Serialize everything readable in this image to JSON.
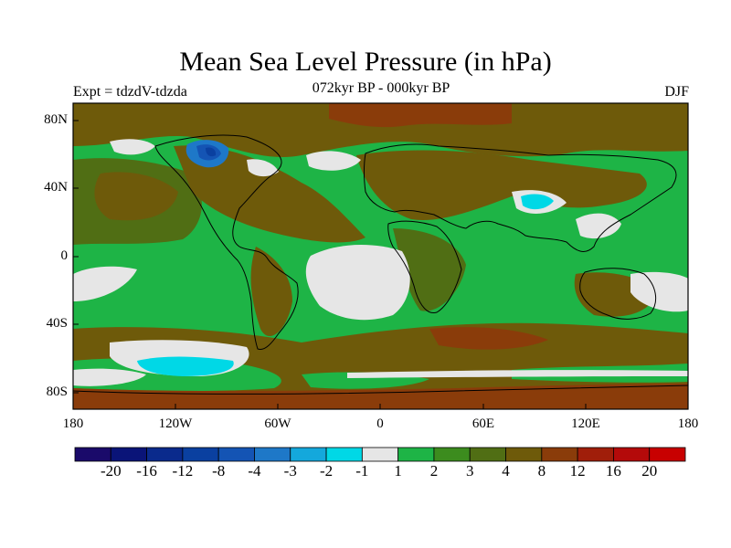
{
  "map": {
    "title": "Mean Sea Level Pressure (in hPa)",
    "left_string": "Expt = tdzdV-tdzda",
    "center_string": "072kyr BP - 000kyr BP",
    "right_string": "DJF",
    "lat_ticks": [
      "80N",
      "40N",
      "0",
      "40S",
      "80S"
    ],
    "lon_ticks": [
      "180",
      "120W",
      "60W",
      "0",
      "60E",
      "120E",
      "180"
    ]
  },
  "colorbar": {
    "colors": [
      "#1a0a6a",
      "#0a1478",
      "#0a2a8c",
      "#0a40a0",
      "#1454b4",
      "#1e78c8",
      "#14a8dc",
      "#00d8e6",
      "#e6e6e6",
      "#1eb446",
      "#3c8c1e",
      "#506e14",
      "#6e5a0a",
      "#8a3c0a",
      "#a01e0a",
      "#b40a0a",
      "#c80000"
    ],
    "labels": [
      "-20",
      "-16",
      "-12",
      "-8",
      "-4",
      "-3",
      "-2",
      "-1",
      "1",
      "2",
      "3",
      "4",
      "8",
      "12",
      "16",
      "20"
    ]
  },
  "map_colors": {
    "ocean_green": "#1eb446",
    "land_brown": "#6e5a0a",
    "olive": "#506e14",
    "white": "#e6e6e6",
    "cyan": "#00d8e6",
    "dark_brown": "#8a3c0a",
    "blue": "#1454b4"
  }
}
